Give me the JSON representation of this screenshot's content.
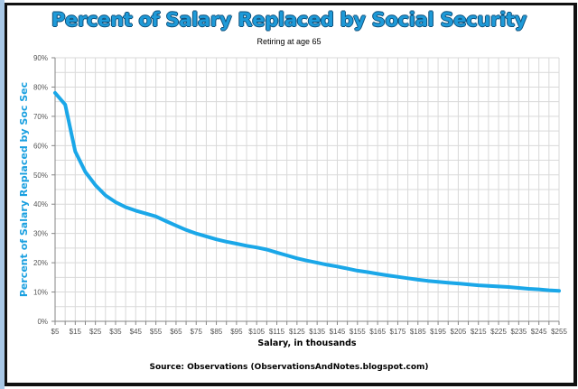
{
  "chart_data": {
    "type": "line",
    "title": "Percent of Salary Replaced by Social Security",
    "subtitle": "Retiring at age 65",
    "xlabel": "Salary, in thousands",
    "ylabel": "Percent of Salary Replaced by Soc Sec",
    "source": "Source: Observations (ObservationsAndNotes.blogspot.com)",
    "xlim": [
      5,
      255
    ],
    "ylim": [
      0,
      90
    ],
    "grid": true,
    "legend": "none",
    "x_tick_labels": [
      "$5",
      "$15",
      "$25",
      "$35",
      "$45",
      "$55",
      "$65",
      "$75",
      "$85",
      "$95",
      "$105",
      "$115",
      "$125",
      "$135",
      "$145",
      "$155",
      "$165",
      "$175",
      "$185",
      "$195",
      "$205",
      "$215",
      "$225",
      "$235",
      "$245",
      "$255"
    ],
    "y_tick_labels": [
      "0%",
      "10%",
      "20%",
      "30%",
      "40%",
      "50%",
      "60%",
      "70%",
      "80%",
      "90%"
    ],
    "series": [
      {
        "name": "Percent of Salary Replaced",
        "color": "#1aa7e8",
        "x": [
          5,
          10,
          15,
          20,
          25,
          30,
          35,
          40,
          45,
          50,
          55,
          60,
          65,
          70,
          75,
          80,
          85,
          90,
          95,
          100,
          105,
          110,
          115,
          120,
          125,
          130,
          135,
          140,
          145,
          150,
          155,
          160,
          165,
          170,
          175,
          180,
          185,
          190,
          195,
          200,
          205,
          210,
          215,
          220,
          225,
          230,
          235,
          240,
          245,
          250,
          255
        ],
        "values": [
          78,
          74,
          58,
          51,
          46.5,
          43,
          40.7,
          39,
          37.8,
          36.8,
          35.8,
          34.2,
          32.7,
          31.2,
          30,
          29,
          28,
          27.2,
          26.5,
          25.8,
          25.2,
          24.5,
          23.5,
          22.5,
          21.5,
          20.7,
          20,
          19.3,
          18.7,
          18,
          17.3,
          16.8,
          16.2,
          15.7,
          15.2,
          14.7,
          14.2,
          13.8,
          13.5,
          13.2,
          12.9,
          12.6,
          12.3,
          12.1,
          11.9,
          11.7,
          11.4,
          11.1,
          10.9,
          10.6,
          10.4
        ]
      }
    ]
  },
  "colors": {
    "line": "#1aa7e8",
    "title": "#1e9ad8",
    "grid": "#d9d9d9",
    "axis": "#868686"
  }
}
